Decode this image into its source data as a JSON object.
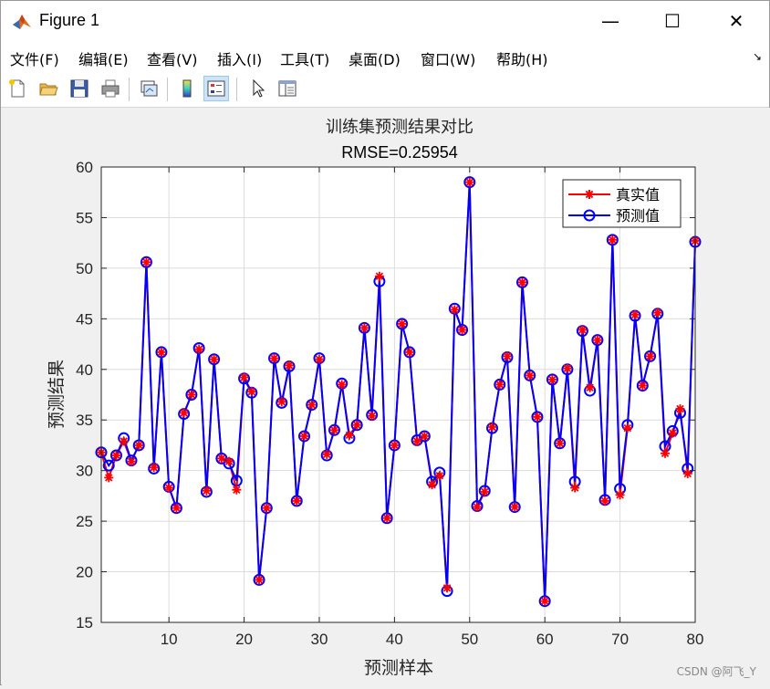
{
  "window": {
    "title": "Figure 1",
    "minimize_glyph": "—",
    "maximize_glyph": "☐",
    "close_glyph": "✕"
  },
  "menu": [
    "文件(F)",
    "编辑(E)",
    "查看(V)",
    "插入(I)",
    "工具(T)",
    "桌面(D)",
    "窗口(W)",
    "帮助(H)"
  ],
  "menu_arrow": "↘",
  "toolbar": {
    "icons": [
      "new-file-icon",
      "open-folder-icon",
      "save-icon",
      "print-icon",
      "link-plot-icon",
      "colorbar-icon",
      "legend-icon",
      "pointer-icon",
      "property-inspector-icon"
    ]
  },
  "watermark": "CSDN @阿飞_Y",
  "chart_data": {
    "type": "line",
    "title": "训练集预测结果对比",
    "subtitle": "RMSE=0.25954",
    "xlabel": "预测样本",
    "ylabel": "预测结果",
    "xlim": [
      1,
      80
    ],
    "ylim": [
      15,
      60
    ],
    "xticks": [
      10,
      20,
      30,
      40,
      50,
      60,
      70,
      80
    ],
    "yticks": [
      15,
      20,
      25,
      30,
      35,
      40,
      45,
      50,
      55,
      60
    ],
    "grid": true,
    "legend_position": "top-right",
    "x": [
      1,
      2,
      3,
      4,
      5,
      6,
      7,
      8,
      9,
      10,
      11,
      12,
      13,
      14,
      15,
      16,
      17,
      18,
      19,
      20,
      21,
      22,
      23,
      24,
      25,
      26,
      27,
      28,
      29,
      30,
      31,
      32,
      33,
      34,
      35,
      36,
      37,
      38,
      39,
      40,
      41,
      42,
      43,
      44,
      45,
      46,
      47,
      48,
      49,
      50,
      51,
      52,
      53,
      54,
      55,
      56,
      57,
      58,
      59,
      60,
      61,
      62,
      63,
      64,
      65,
      66,
      67,
      68,
      69,
      70,
      71,
      72,
      73,
      74,
      75,
      76,
      77,
      78,
      79,
      80
    ],
    "series": [
      {
        "name": "真实值",
        "color": "#ff0000",
        "marker": "asterisk",
        "values": [
          31.8,
          29.3,
          31.5,
          32.9,
          30.9,
          32.5,
          50.6,
          30.3,
          41.7,
          28.3,
          26.3,
          35.7,
          37.5,
          42.0,
          28.0,
          41.0,
          31.2,
          30.9,
          28.1,
          39.2,
          37.8,
          19.2,
          26.3,
          41.1,
          36.8,
          40.4,
          27.0,
          33.4,
          36.5,
          41.0,
          31.6,
          34.0,
          38.5,
          33.5,
          34.5,
          44.1,
          35.4,
          49.2,
          25.3,
          32.5,
          44.5,
          41.7,
          32.9,
          33.4,
          28.6,
          29.5,
          18.4,
          45.9,
          43.9,
          58.5,
          26.4,
          27.9,
          34.3,
          38.5,
          41.3,
          26.4,
          48.6,
          39.4,
          35.3,
          17.1,
          39.0,
          32.7,
          40.1,
          28.3,
          43.9,
          38.2,
          42.9,
          27.0,
          52.8,
          27.6,
          34.2,
          45.4,
          38.4,
          41.3,
          45.6,
          31.7,
          33.7,
          36.1,
          29.7,
          52.7
        ]
      },
      {
        "name": "预测值",
        "color": "#0000ff",
        "marker": "circle",
        "values": [
          31.8,
          30.5,
          31.5,
          33.2,
          31.0,
          32.5,
          50.6,
          30.2,
          41.7,
          28.4,
          26.3,
          35.6,
          37.5,
          42.1,
          27.9,
          41.0,
          31.2,
          30.7,
          29.0,
          39.1,
          37.7,
          19.2,
          26.3,
          41.1,
          36.7,
          40.3,
          27.0,
          33.4,
          36.5,
          41.1,
          31.5,
          34.0,
          38.6,
          33.2,
          34.5,
          44.1,
          35.5,
          48.7,
          25.3,
          32.5,
          44.5,
          41.7,
          33.0,
          33.4,
          28.9,
          29.8,
          18.1,
          46.0,
          43.9,
          58.5,
          26.5,
          28.0,
          34.2,
          38.5,
          41.2,
          26.4,
          48.6,
          39.4,
          35.3,
          17.1,
          39.0,
          32.7,
          40.0,
          28.9,
          43.8,
          37.9,
          42.9,
          27.1,
          52.8,
          28.2,
          34.5,
          45.3,
          38.4,
          41.3,
          45.5,
          32.4,
          33.9,
          35.7,
          30.2,
          52.6
        ]
      }
    ]
  }
}
